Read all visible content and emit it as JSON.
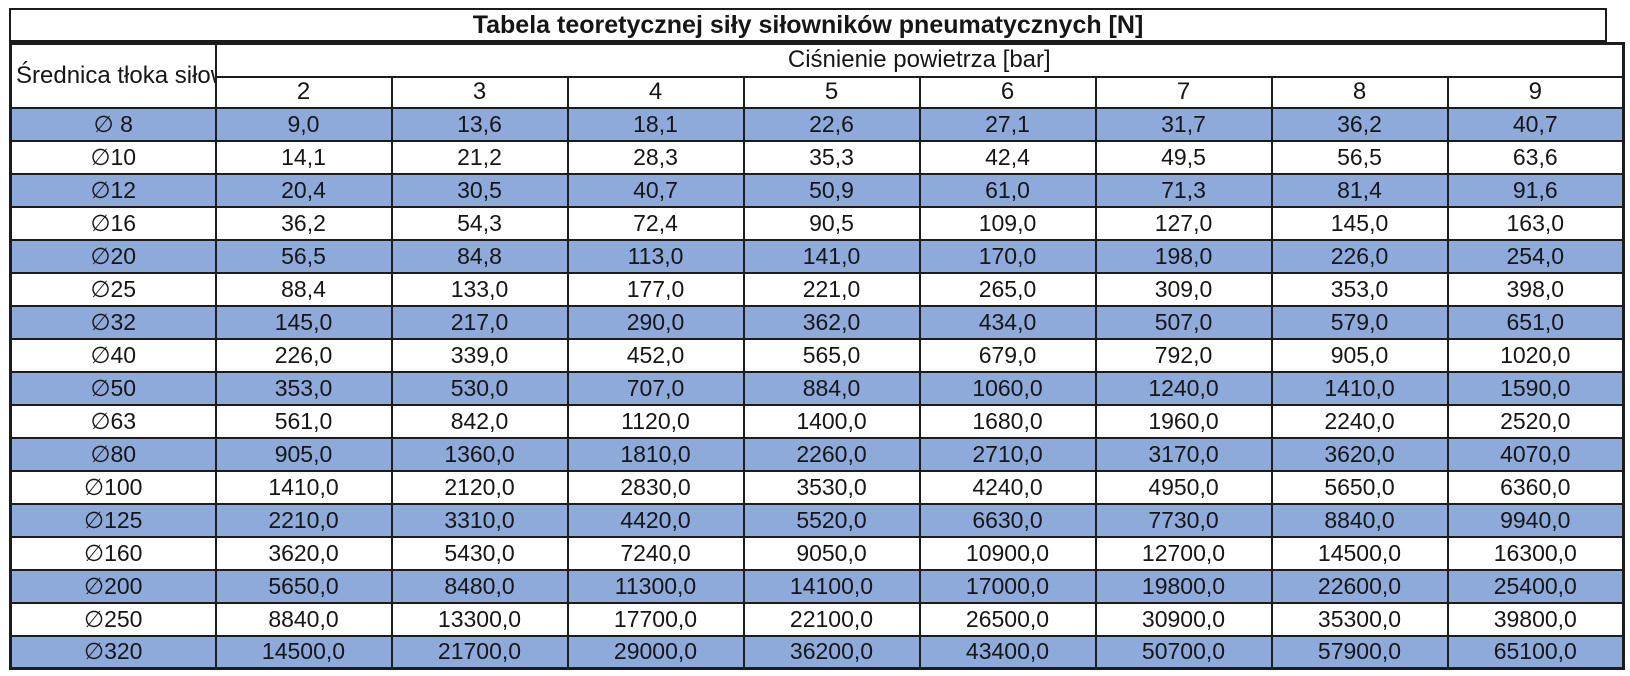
{
  "title": "Tabela teoretycznej siły siłowników pneumatycznych [N]",
  "table": {
    "row_header_label": "Średnica tłoka siłownika",
    "col_group_label": "Ciśnienie powietrza [bar]",
    "pressure_columns": [
      "2",
      "3",
      "4",
      "5",
      "6",
      "7",
      "8",
      "9"
    ],
    "rows": [
      {
        "diameter": "∅ 8",
        "values": [
          "9,0",
          "13,6",
          "18,1",
          "22,6",
          "27,1",
          "31,7",
          "36,2",
          "40,7"
        ]
      },
      {
        "diameter": "∅10",
        "values": [
          "14,1",
          "21,2",
          "28,3",
          "35,3",
          "42,4",
          "49,5",
          "56,5",
          "63,6"
        ]
      },
      {
        "diameter": "∅12",
        "values": [
          "20,4",
          "30,5",
          "40,7",
          "50,9",
          "61,0",
          "71,3",
          "81,4",
          "91,6"
        ]
      },
      {
        "diameter": "∅16",
        "values": [
          "36,2",
          "54,3",
          "72,4",
          "90,5",
          "109,0",
          "127,0",
          "145,0",
          "163,0"
        ]
      },
      {
        "diameter": "∅20",
        "values": [
          "56,5",
          "84,8",
          "113,0",
          "141,0",
          "170,0",
          "198,0",
          "226,0",
          "254,0"
        ]
      },
      {
        "diameter": "∅25",
        "values": [
          "88,4",
          "133,0",
          "177,0",
          "221,0",
          "265,0",
          "309,0",
          "353,0",
          "398,0"
        ]
      },
      {
        "diameter": "∅32",
        "values": [
          "145,0",
          "217,0",
          "290,0",
          "362,0",
          "434,0",
          "507,0",
          "579,0",
          "651,0"
        ]
      },
      {
        "diameter": "∅40",
        "values": [
          "226,0",
          "339,0",
          "452,0",
          "565,0",
          "679,0",
          "792,0",
          "905,0",
          "1020,0"
        ]
      },
      {
        "diameter": "∅50",
        "values": [
          "353,0",
          "530,0",
          "707,0",
          "884,0",
          "1060,0",
          "1240,0",
          "1410,0",
          "1590,0"
        ]
      },
      {
        "diameter": "∅63",
        "values": [
          "561,0",
          "842,0",
          "1120,0",
          "1400,0",
          "1680,0",
          "1960,0",
          "2240,0",
          "2520,0"
        ]
      },
      {
        "diameter": "∅80",
        "values": [
          "905,0",
          "1360,0",
          "1810,0",
          "2260,0",
          "2710,0",
          "3170,0",
          "3620,0",
          "4070,0"
        ]
      },
      {
        "diameter": "∅100",
        "values": [
          "1410,0",
          "2120,0",
          "2830,0",
          "3530,0",
          "4240,0",
          "4950,0",
          "5650,0",
          "6360,0"
        ]
      },
      {
        "diameter": "∅125",
        "values": [
          "2210,0",
          "3310,0",
          "4420,0",
          "5520,0",
          "6630,0",
          "7730,0",
          "8840,0",
          "9940,0"
        ]
      },
      {
        "diameter": "∅160",
        "values": [
          "3620,0",
          "5430,0",
          "7240,0",
          "9050,0",
          "10900,0",
          "12700,0",
          "14500,0",
          "16300,0"
        ]
      },
      {
        "diameter": "∅200",
        "values": [
          "5650,0",
          "8480,0",
          "11300,0",
          "14100,0",
          "17000,0",
          "19800,0",
          "22600,0",
          "25400,0"
        ]
      },
      {
        "diameter": "∅250",
        "values": [
          "8840,0",
          "13300,0",
          "17700,0",
          "22100,0",
          "26500,0",
          "30900,0",
          "35300,0",
          "39800,0"
        ]
      },
      {
        "diameter": "∅320",
        "values": [
          "14500,0",
          "21700,0",
          "29000,0",
          "36200,0",
          "43400,0",
          "50700,0",
          "57900,0",
          "65100,0"
        ]
      }
    ]
  },
  "colors": {
    "band_blue": "#8EAADB",
    "border": "#1c1c1c",
    "background": "#ffffff"
  }
}
